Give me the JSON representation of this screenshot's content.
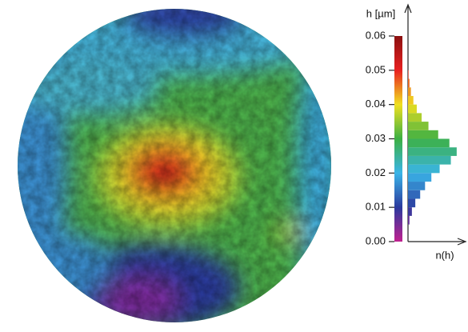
{
  "chart_data": {
    "type": "histogram",
    "ylabel": "h [µm]",
    "xlabel": "n(h)",
    "ylim": [
      0,
      0.06
    ],
    "yticks": [
      {
        "value": 0,
        "label": "0.00"
      },
      0.01,
      0.02,
      0.03,
      0.04,
      0.05,
      0.06
    ],
    "xlim": [
      0,
      115
    ],
    "bins": [
      0.005,
      0.0075,
      0.01,
      0.0125,
      0.015,
      0.0175,
      0.02,
      0.0225,
      0.025,
      0.0275,
      0.03,
      0.0325,
      0.035,
      0.0375,
      0.04,
      0.0425,
      0.045,
      0.0475,
      0.05
    ],
    "counts": [
      3,
      8,
      15,
      25,
      35,
      48,
      65,
      88,
      100,
      85,
      62,
      42,
      28,
      18,
      11,
      6,
      3,
      1
    ],
    "colorscale": [
      "#c0208f",
      "#2b3a9e",
      "#3ab4e8",
      "#3cb043",
      "#f0e020",
      "#e82020",
      "#8b1010"
    ]
  }
}
